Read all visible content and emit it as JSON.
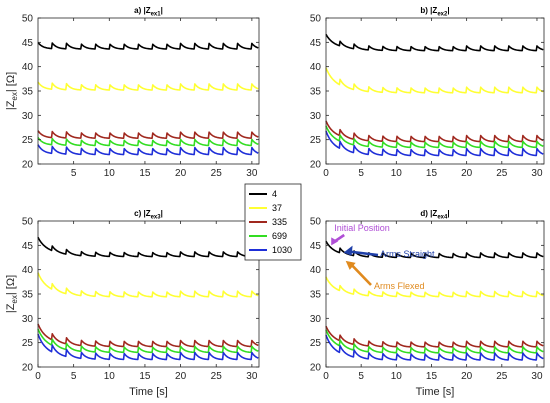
{
  "chart_data": [
    {
      "type": "line",
      "title": "a) |Z",
      "title_sub": "ex1",
      "title_end": "|",
      "xlim": [
        0,
        31
      ],
      "ylim": [
        20,
        50
      ],
      "xticks": [
        5,
        10,
        15,
        20,
        25,
        30
      ],
      "yticks": [
        20,
        25,
        30,
        35,
        40,
        45,
        50
      ],
      "ylabel": "|Z",
      "ylabel_sub": "ex",
      "ylabel_end": "| [Ω]",
      "xlabel": "",
      "series": [
        {
          "name": "4",
          "color": "#000000",
          "start": 44.2,
          "level": 44.0,
          "amp": 1.2
        },
        {
          "name": "37",
          "color": "#ffff33",
          "start": 36.0,
          "level": 35.6,
          "amp": 1.3
        },
        {
          "name": "335",
          "color": "#a0281e",
          "start": 26.0,
          "level": 25.7,
          "amp": 1.3
        },
        {
          "name": "699",
          "color": "#33dd22",
          "start": 24.6,
          "level": 24.2,
          "amp": 1.3
        },
        {
          "name": "1030",
          "color": "#1f2fd8",
          "start": 23.0,
          "level": 22.4,
          "amp": 1.5
        }
      ]
    },
    {
      "type": "line",
      "title": "b) |Z",
      "title_sub": "ex2",
      "title_end": "|",
      "xlim": [
        0,
        31
      ],
      "ylim": [
        20,
        50
      ],
      "xticks": [
        0,
        5,
        10,
        15,
        20,
        25,
        30
      ],
      "yticks": [
        20,
        25,
        30,
        35,
        40,
        45,
        50
      ],
      "ylabel": "",
      "xlabel": "",
      "series": [
        {
          "name": "4",
          "color": "#000000",
          "start": 46.0,
          "level": 43.6,
          "amp": 1.0
        },
        {
          "name": "37",
          "color": "#ffff33",
          "start": 39.0,
          "level": 35.0,
          "amp": 1.2
        },
        {
          "name": "335",
          "color": "#a0281e",
          "start": 28.0,
          "level": 25.0,
          "amp": 1.3
        },
        {
          "name": "699",
          "color": "#33dd22",
          "start": 27.0,
          "level": 23.8,
          "amp": 1.3
        },
        {
          "name": "1030",
          "color": "#1f2fd8",
          "start": 25.8,
          "level": 22.2,
          "amp": 1.5
        }
      ]
    },
    {
      "type": "line",
      "title": "c) |Z",
      "title_sub": "ex3",
      "title_end": "|",
      "xlim": [
        0,
        31
      ],
      "ylim": [
        20,
        50
      ],
      "xticks": [
        0,
        5,
        10,
        15,
        20,
        25,
        30
      ],
      "yticks": [
        20,
        25,
        30,
        35,
        40,
        45,
        50
      ],
      "ylabel": "|Z",
      "ylabel_sub": "ex",
      "ylabel_end": "| [Ω]",
      "xlabel": "Time [s]",
      "series": [
        {
          "name": "4",
          "color": "#000000",
          "start": 46.0,
          "level": 43.0,
          "amp": 1.0
        },
        {
          "name": "37",
          "color": "#ffff33",
          "start": 38.6,
          "level": 34.8,
          "amp": 1.2
        },
        {
          "name": "335",
          "color": "#a0281e",
          "start": 28.0,
          "level": 24.6,
          "amp": 1.3
        },
        {
          "name": "699",
          "color": "#33dd22",
          "start": 27.0,
          "level": 23.4,
          "amp": 1.3
        },
        {
          "name": "1030",
          "color": "#1f2fd8",
          "start": 25.8,
          "level": 22.0,
          "amp": 1.5
        }
      ]
    },
    {
      "type": "line",
      "title": "d) |Z",
      "title_sub": "ex4",
      "title_end": "|",
      "xlim": [
        0,
        31
      ],
      "ylim": [
        20,
        50
      ],
      "xticks": [
        0,
        5,
        10,
        15,
        20,
        25,
        30
      ],
      "yticks": [
        20,
        25,
        30,
        35,
        40,
        45,
        50
      ],
      "ylabel": "",
      "xlabel": "Time [s]",
      "series": [
        {
          "name": "4",
          "color": "#000000",
          "start": 45.2,
          "level": 42.8,
          "amp": 1.0
        },
        {
          "name": "37",
          "color": "#ffff33",
          "start": 37.8,
          "level": 34.8,
          "amp": 1.1
        },
        {
          "name": "335",
          "color": "#a0281e",
          "start": 27.6,
          "level": 24.5,
          "amp": 1.2
        },
        {
          "name": "699",
          "color": "#33dd22",
          "start": 26.8,
          "level": 23.3,
          "amp": 1.3
        },
        {
          "name": "1030",
          "color": "#1f2fd8",
          "start": 25.6,
          "level": 21.9,
          "amp": 1.5
        }
      ],
      "annotations": [
        {
          "text": "Initial Position",
          "color": "#b04fd6",
          "x": 0.6,
          "y": 45.2
        },
        {
          "text": "Arms Straight",
          "color": "#1f3fa8",
          "x": 2.5,
          "y": 43.5
        },
        {
          "text": "Arms Flexed",
          "color": "#e08a1e",
          "x": 2.8,
          "y": 42.0
        }
      ]
    }
  ],
  "legend": {
    "entries": [
      {
        "label": "4",
        "color": "#000000"
      },
      {
        "label": "37",
        "color": "#ffff33"
      },
      {
        "label": "335",
        "color": "#a0281e"
      },
      {
        "label": "699",
        "color": "#33dd22"
      },
      {
        "label": "1030",
        "color": "#1f2fd8"
      }
    ],
    "placement": "center"
  },
  "wave": {
    "period_s": 2.0
  }
}
